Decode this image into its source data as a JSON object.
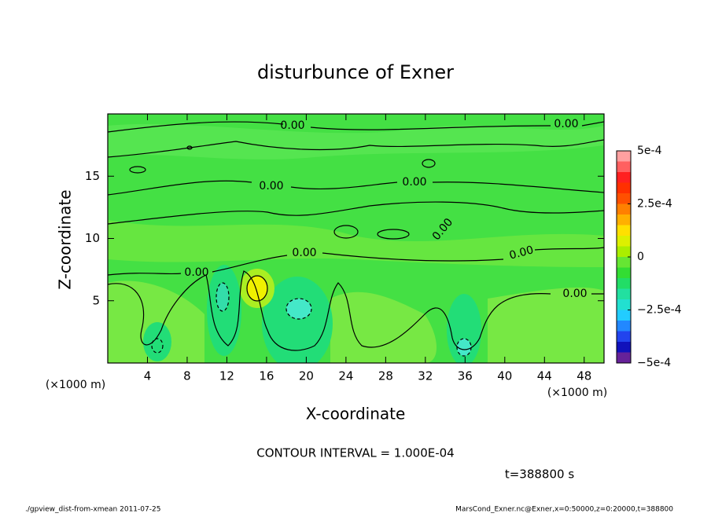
{
  "chart_data": {
    "type": "contour",
    "title": "disturbunce of Exner",
    "x_label": "X-coordinate",
    "y_label": "Z-coordinate",
    "x_unit": "(×1000 m)",
    "y_unit": "(×1000 m)",
    "xlim": [
      0,
      50
    ],
    "ylim": [
      0,
      20
    ],
    "xticks": [
      4,
      8,
      12,
      16,
      20,
      24,
      28,
      32,
      36,
      40,
      44,
      48
    ],
    "yticks": [
      5,
      10,
      15
    ],
    "contour_labels": [
      "0.00",
      "0.00",
      "0.00",
      "0.00",
      "0.00",
      "0.00",
      "0.00",
      "0.00",
      "0.00"
    ],
    "contour_interval_note": "CONTOUR INTERVAL = 1.000E-04",
    "time_note": "t=388800 s",
    "footer_left": "./gpview_dist-from-xmean  2011-07-25",
    "footer_right": "MarsCond_Exner.nc@Exner,x=0:50000,z=0:20000,t=388800",
    "colorbar": {
      "lim": [
        -0.0005,
        0.0005
      ],
      "colors": [
        "#662299",
        "#1111bb",
        "#2244ee",
        "#2288ff",
        "#22ccff",
        "#22e0d0",
        "#22e0a0",
        "#22dd66",
        "#33dd33",
        "#66e633",
        "#aaee00",
        "#ddf000",
        "#ffe000",
        "#ffb000",
        "#ff8000",
        "#ff5000",
        "#ff3000",
        "#ff2020",
        "#ff6060",
        "#ffa0a0"
      ],
      "ticks": [
        {
          "value": -0.0005,
          "label": "−5e-4"
        },
        {
          "value": -0.00025,
          "label": "−2.5e-4"
        },
        0,
        {
          "value": 0.00025,
          "label": "2.5e-4"
        },
        {
          "value": 0.0005,
          "label": "5e-4"
        }
      ]
    }
  }
}
